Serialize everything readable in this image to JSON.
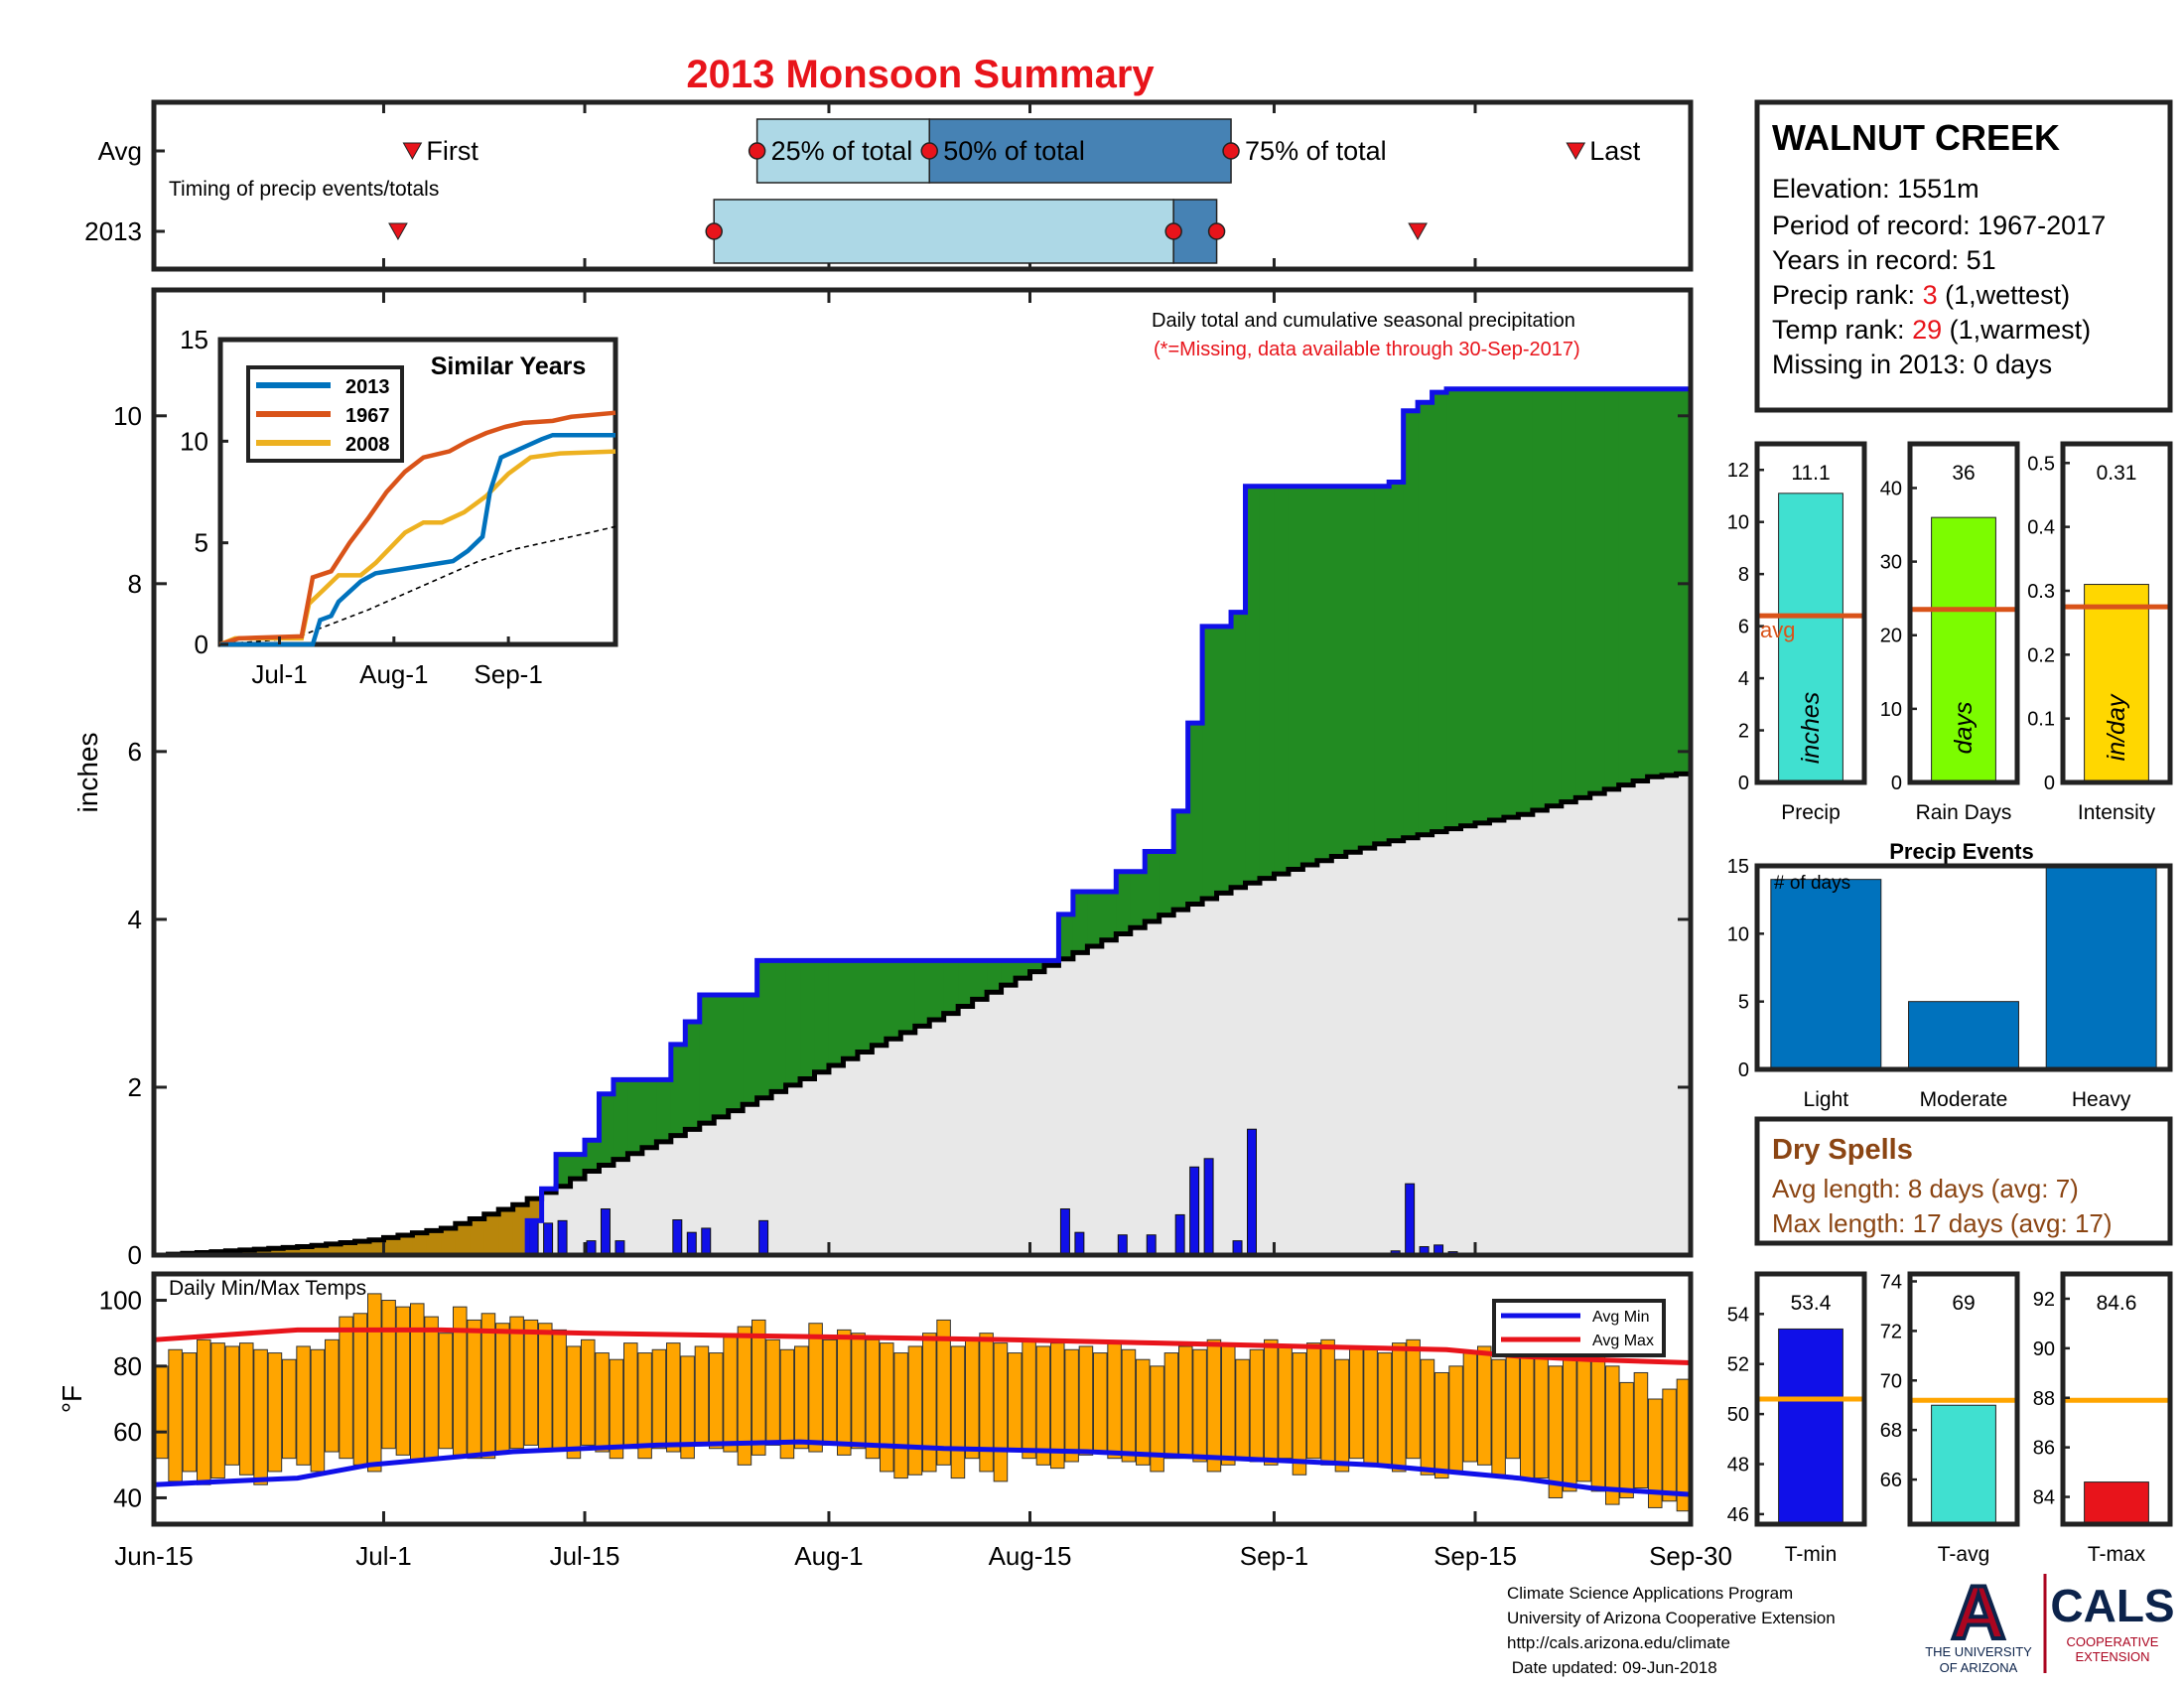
{
  "page": {
    "title": "2013 Monsoon Summary",
    "title_color": "#e8141b"
  },
  "timing_panel": {
    "label": "Timing of precip events/totals",
    "row_labels": [
      "Avg",
      "2013"
    ],
    "markers": {
      "first": "First",
      "p25": "25% of total",
      "p50": "50% of total",
      "p75": "75% of total",
      "last": "Last"
    },
    "avg": {
      "first": "2013-07-03",
      "p25": "2013-07-27",
      "p50": "2013-08-08",
      "p75": "2013-08-29",
      "last": "2013-09-22"
    },
    "y2013": {
      "first": "2013-07-02",
      "p25": "2013-07-24",
      "p50": "2013-08-25",
      "p75": "2013-08-28",
      "last": "2013-09-11"
    },
    "colors": {
      "early": "#add8e6",
      "late": "#4682b4",
      "marker": "#e8141b"
    }
  },
  "station": {
    "name": "WALNUT CREEK",
    "elevation_label": "Elevation: 1551m",
    "period_label": "Period of record: 1967-2017",
    "years_label": "Years in record: 51",
    "precip_rank_prefix": "Precip rank: ",
    "precip_rank_value": "3",
    "precip_rank_suffix": " (1,wettest)",
    "temp_rank_prefix": "Temp rank: ",
    "temp_rank_value": "29",
    "temp_rank_suffix": " (1,warmest)",
    "missing_label": "Missing in 2013: 0 days"
  },
  "dry_spells": {
    "title": "Dry Spells",
    "avg_length": "Avg length: 8 days (avg: 7)",
    "max_length": "Max length: 17 days (avg: 17)",
    "color": "#8b4513"
  },
  "footer": {
    "lines": [
      "Climate Science Applications Program",
      "University of Arizona Cooperative Extension",
      "http://cals.arizona.edu/climate",
      " Date updated: 09-Jun-2018"
    ],
    "logo_ua_text": [
      "THE UNIVERSITY",
      "OF ARIZONA"
    ],
    "logo_ua_letter": "A",
    "logo_cals_text": "CALS",
    "logo_cals_sub": [
      "COOPERATIVE",
      "EXTENSION"
    ]
  },
  "chart_data": [
    {
      "id": "cumulative",
      "type": "area",
      "annotation": "Daily total and cumulative seasonal precipitation",
      "annotation2": "(*=Missing, data available through 30-Sep-2017)",
      "ylabel": "inches",
      "ylim": [
        0,
        11.5
      ],
      "yticks": [
        0,
        2,
        4,
        6,
        8,
        10
      ],
      "x_start": "2013-06-15",
      "x_end": "2013-09-30",
      "xticks": [
        {
          "label": "Jun-15",
          "day": 0
        },
        {
          "label": "Jul-1",
          "day": 16
        },
        {
          "label": "Jul-15",
          "day": 30
        },
        {
          "label": "Aug-1",
          "day": 47
        },
        {
          "label": "Aug-15",
          "day": 61
        },
        {
          "label": "Sep-1",
          "day": 78
        },
        {
          "label": "Sep-15",
          "day": 92
        },
        {
          "label": "Sep-30",
          "day": 107
        }
      ],
      "colors": {
        "cumulative_2013": "#1010e8",
        "above_avg": "#228b22",
        "below_avg_2013": "#b8860b",
        "avg_area": "#e8e8e8",
        "avg_line": "#000000",
        "daily_bar": "#1010e8"
      },
      "daily_precip": [
        {
          "day": 26,
          "value": 0.41
        },
        {
          "day": 27,
          "value": 0.38
        },
        {
          "day": 28,
          "value": 0.41
        },
        {
          "day": 30,
          "value": 0.17
        },
        {
          "day": 31,
          "value": 0.55
        },
        {
          "day": 32,
          "value": 0.17
        },
        {
          "day": 36,
          "value": 0.42
        },
        {
          "day": 37,
          "value": 0.27
        },
        {
          "day": 38,
          "value": 0.32
        },
        {
          "day": 42,
          "value": 0.41
        },
        {
          "day": 63,
          "value": 0.55
        },
        {
          "day": 64,
          "value": 0.27
        },
        {
          "day": 67,
          "value": 0.24
        },
        {
          "day": 69,
          "value": 0.24
        },
        {
          "day": 71,
          "value": 0.48
        },
        {
          "day": 72,
          "value": 1.05
        },
        {
          "day": 73,
          "value": 1.15
        },
        {
          "day": 75,
          "value": 0.17
        },
        {
          "day": 76,
          "value": 1.5
        },
        {
          "day": 86,
          "value": 0.05
        },
        {
          "day": 87,
          "value": 0.85
        },
        {
          "day": 88,
          "value": 0.1
        },
        {
          "day": 89,
          "value": 0.12
        },
        {
          "day": 90,
          "value": 0.04
        }
      ],
      "cumulative_2013": [
        {
          "day": 0,
          "value": 0
        },
        {
          "day": 26,
          "value": 0.41
        },
        {
          "day": 27,
          "value": 0.79
        },
        {
          "day": 28,
          "value": 1.2
        },
        {
          "day": 30,
          "value": 1.37
        },
        {
          "day": 31,
          "value": 1.92
        },
        {
          "day": 32,
          "value": 2.09
        },
        {
          "day": 36,
          "value": 2.51
        },
        {
          "day": 37,
          "value": 2.78
        },
        {
          "day": 38,
          "value": 3.1
        },
        {
          "day": 42,
          "value": 3.51
        },
        {
          "day": 63,
          "value": 4.06
        },
        {
          "day": 64,
          "value": 4.33
        },
        {
          "day": 67,
          "value": 4.57
        },
        {
          "day": 69,
          "value": 4.81
        },
        {
          "day": 71,
          "value": 5.29
        },
        {
          "day": 72,
          "value": 6.34
        },
        {
          "day": 73,
          "value": 7.49
        },
        {
          "day": 75,
          "value": 7.66
        },
        {
          "day": 76,
          "value": 9.16
        },
        {
          "day": 86,
          "value": 9.21
        },
        {
          "day": 87,
          "value": 10.06
        },
        {
          "day": 88,
          "value": 10.16
        },
        {
          "day": 89,
          "value": 10.28
        },
        {
          "day": 90,
          "value": 10.32
        },
        {
          "day": 107,
          "value": 10.32
        }
      ],
      "cumulative_avg": [
        {
          "day": 0,
          "value": 0
        },
        {
          "day": 5,
          "value": 0.05
        },
        {
          "day": 10,
          "value": 0.1
        },
        {
          "day": 15,
          "value": 0.18
        },
        {
          "day": 20,
          "value": 0.32
        },
        {
          "day": 25,
          "value": 0.6
        },
        {
          "day": 28,
          "value": 0.82
        },
        {
          "day": 30,
          "value": 1.0
        },
        {
          "day": 35,
          "value": 1.35
        },
        {
          "day": 40,
          "value": 1.72
        },
        {
          "day": 45,
          "value": 2.1
        },
        {
          "day": 50,
          "value": 2.5
        },
        {
          "day": 55,
          "value": 2.88
        },
        {
          "day": 60,
          "value": 3.3
        },
        {
          "day": 65,
          "value": 3.68
        },
        {
          "day": 70,
          "value": 4.05
        },
        {
          "day": 75,
          "value": 4.38
        },
        {
          "day": 80,
          "value": 4.65
        },
        {
          "day": 85,
          "value": 4.9
        },
        {
          "day": 90,
          "value": 5.08
        },
        {
          "day": 95,
          "value": 5.25
        },
        {
          "day": 100,
          "value": 5.5
        },
        {
          "day": 104,
          "value": 5.7
        },
        {
          "day": 107,
          "value": 5.75
        }
      ]
    },
    {
      "id": "similar_years",
      "type": "line",
      "title": "Similar Years",
      "ylim": [
        0,
        15
      ],
      "yticks": [
        0,
        5,
        10,
        15
      ],
      "xticks": [
        {
          "label": "Jul-1",
          "day": 16
        },
        {
          "label": "Aug-1",
          "day": 47
        },
        {
          "label": "Sep-1",
          "day": 78
        }
      ],
      "series": [
        {
          "name": "2013",
          "color": "#0072bd",
          "points": [
            [
              0,
              0
            ],
            [
              25,
              0
            ],
            [
              27,
              1.2
            ],
            [
              30,
              1.4
            ],
            [
              32,
              2.1
            ],
            [
              38,
              3.1
            ],
            [
              42,
              3.5
            ],
            [
              63,
              4.1
            ],
            [
              67,
              4.6
            ],
            [
              71,
              5.3
            ],
            [
              73,
              7.5
            ],
            [
              76,
              9.2
            ],
            [
              87,
              10.1
            ],
            [
              90,
              10.3
            ],
            [
              107,
              10.3
            ]
          ]
        },
        {
          "name": "1967",
          "color": "#d95319",
          "points": [
            [
              0,
              0
            ],
            [
              5,
              0.3
            ],
            [
              22,
              0.4
            ],
            [
              25,
              3.3
            ],
            [
              30,
              3.6
            ],
            [
              35,
              5.0
            ],
            [
              40,
              6.2
            ],
            [
              45,
              7.5
            ],
            [
              50,
              8.5
            ],
            [
              55,
              9.2
            ],
            [
              62,
              9.5
            ],
            [
              67,
              10.0
            ],
            [
              72,
              10.4
            ],
            [
              77,
              10.7
            ],
            [
              82,
              10.9
            ],
            [
              90,
              11.0
            ],
            [
              95,
              11.2
            ],
            [
              107,
              11.4
            ]
          ]
        },
        {
          "name": "2008",
          "color": "#edb120",
          "points": [
            [
              0,
              0
            ],
            [
              4,
              0.3
            ],
            [
              22,
              0.3
            ],
            [
              24,
              2.0
            ],
            [
              28,
              2.7
            ],
            [
              32,
              3.4
            ],
            [
              38,
              3.4
            ],
            [
              42,
              4.0
            ],
            [
              50,
              5.5
            ],
            [
              55,
              6.0
            ],
            [
              60,
              6.0
            ],
            [
              66,
              6.5
            ],
            [
              72,
              7.3
            ],
            [
              78,
              8.4
            ],
            [
              84,
              9.2
            ],
            [
              92,
              9.4
            ],
            [
              107,
              9.5
            ]
          ]
        },
        {
          "name": "avg",
          "color": "#000000",
          "dashed": true,
          "points": [
            [
              0,
              0
            ],
            [
              20,
              0.3
            ],
            [
              30,
              1.0
            ],
            [
              40,
              1.7
            ],
            [
              50,
              2.5
            ],
            [
              60,
              3.3
            ],
            [
              70,
              4.1
            ],
            [
              80,
              4.7
            ],
            [
              90,
              5.1
            ],
            [
              100,
              5.5
            ],
            [
              107,
              5.8
            ]
          ]
        }
      ]
    },
    {
      "id": "temps",
      "type": "bar",
      "title": "Daily Min/Max Temps",
      "ylabel": "°F",
      "ylim": [
        32,
        108
      ],
      "yticks": [
        40,
        60,
        80,
        100
      ],
      "legend": [
        "Avg Min",
        "Avg Max"
      ],
      "colors": {
        "bar": "#ffa500",
        "avg_min": "#1010e8",
        "avg_max": "#e8141b"
      },
      "avg_max": [
        [
          0,
          88
        ],
        [
          10,
          91
        ],
        [
          20,
          91
        ],
        [
          30,
          90
        ],
        [
          45,
          89
        ],
        [
          60,
          88
        ],
        [
          70,
          87
        ],
        [
          80,
          86
        ],
        [
          90,
          85
        ],
        [
          95,
          83
        ],
        [
          100,
          82
        ],
        [
          107,
          81
        ]
      ],
      "avg_min": [
        [
          0,
          44
        ],
        [
          10,
          46
        ],
        [
          15,
          50
        ],
        [
          25,
          54
        ],
        [
          35,
          56
        ],
        [
          45,
          57
        ],
        [
          55,
          55
        ],
        [
          65,
          54
        ],
        [
          75,
          52
        ],
        [
          85,
          50
        ],
        [
          95,
          46
        ],
        [
          100,
          43
        ],
        [
          107,
          41
        ]
      ],
      "daily_max": [
        80,
        85,
        84,
        88,
        87,
        86,
        87,
        85,
        84,
        82,
        86,
        85,
        88,
        95,
        96,
        102,
        100,
        98,
        99,
        95,
        90,
        98,
        94,
        96,
        93,
        95,
        94,
        93,
        91,
        86,
        88,
        84,
        82,
        87,
        84,
        85,
        87,
        83,
        86,
        84,
        89,
        92,
        94,
        88,
        85,
        86,
        93,
        88,
        91,
        90,
        88,
        87,
        84,
        86,
        90,
        94,
        86,
        88,
        90,
        87,
        84,
        88,
        86,
        87,
        85,
        86,
        84,
        87,
        85,
        82,
        80,
        84,
        86,
        85,
        88,
        87,
        82,
        85,
        88,
        86,
        84,
        87,
        88,
        82,
        86,
        85,
        84,
        87,
        88,
        82,
        78,
        80,
        84,
        86,
        82,
        85,
        86,
        84,
        80,
        82,
        84,
        86,
        80,
        75,
        78,
        70,
        73,
        76
      ],
      "daily_min": [
        52,
        45,
        48,
        44,
        46,
        50,
        47,
        44,
        48,
        52,
        50,
        48,
        54,
        52,
        50,
        48,
        55,
        53,
        51,
        52,
        55,
        53,
        52,
        52,
        54,
        55,
        56,
        54,
        55,
        52,
        56,
        54,
        52,
        55,
        52,
        55,
        54,
        52,
        56,
        55,
        54,
        50,
        53,
        56,
        52,
        55,
        54,
        56,
        53,
        55,
        52,
        48,
        46,
        47,
        48,
        50,
        46,
        52,
        48,
        45,
        55,
        52,
        50,
        49,
        51,
        53,
        54,
        52,
        51,
        50,
        48,
        52,
        52,
        51,
        48,
        50,
        52,
        51,
        50,
        52,
        47,
        52,
        50,
        48,
        52,
        50,
        50,
        48,
        52,
        47,
        46,
        48,
        51,
        50,
        47,
        52,
        46,
        46,
        40,
        42,
        45,
        42,
        38,
        40,
        43,
        37,
        39,
        36
      ]
    },
    {
      "id": "precip_stats",
      "type": "bar",
      "panels": [
        {
          "xlabel": "Precip",
          "unit": "inches",
          "value": 11.1,
          "avg": 6.4,
          "ylim": [
            0,
            13
          ],
          "yticks": [
            0,
            2,
            4,
            6,
            8,
            10,
            12
          ],
          "color": "#40e0d0",
          "avg_label": "avg"
        },
        {
          "xlabel": "Rain Days",
          "unit": "days",
          "value": 36,
          "avg": 23.5,
          "ylim": [
            0,
            46
          ],
          "yticks": [
            0,
            10,
            20,
            30,
            40
          ],
          "color": "#7cfc00"
        },
        {
          "xlabel": "Intensity",
          "unit": "in/day",
          "value": 0.31,
          "avg": 0.275,
          "ylim": [
            0,
            0.53
          ],
          "yticks": [
            0,
            0.1,
            0.2,
            0.3,
            0.4,
            0.5
          ],
          "color": "#ffd700"
        }
      ],
      "avg_color": "#d95319"
    },
    {
      "id": "precip_events",
      "type": "bar",
      "title": "Precip Events",
      "ylabel_inside": "# of days",
      "categories": [
        "Light",
        "Moderate",
        "Heavy"
      ],
      "values": [
        14,
        5,
        15
      ],
      "ylim": [
        0,
        15
      ],
      "yticks": [
        0,
        5,
        10,
        15
      ],
      "color": "#0072bd"
    },
    {
      "id": "temp_stats",
      "type": "bar",
      "panels": [
        {
          "xlabel": "T-min",
          "value": 53.4,
          "avg": 50.6,
          "ylim": [
            45.6,
            55.6
          ],
          "yticks": [
            46,
            48,
            50,
            52,
            54
          ],
          "color": "#1010e8"
        },
        {
          "xlabel": "T-avg",
          "value": 69,
          "avg": 69.2,
          "ylim": [
            64.2,
            74.3
          ],
          "yticks": [
            66,
            68,
            70,
            72,
            74
          ],
          "color": "#40e0d0"
        },
        {
          "xlabel": "T-max",
          "value": 84.6,
          "avg": 87.9,
          "ylim": [
            82.9,
            93
          ],
          "yticks": [
            84,
            86,
            88,
            90,
            92
          ],
          "color": "#e8141b"
        }
      ],
      "avg_color": "#ffa500"
    }
  ]
}
